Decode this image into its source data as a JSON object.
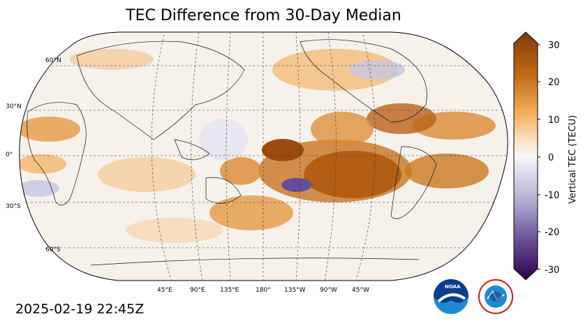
{
  "title": "TEC Difference from 30-Day Median",
  "timestamp": "2025-02-19 22:45Z",
  "map": {
    "projection": "robinson",
    "center_longitude": "180",
    "lat_labels": [
      "60°N",
      "30°N",
      "0°",
      "30°S",
      "60°S"
    ],
    "lon_labels": [
      "45°E",
      "90°E",
      "135°E",
      "180°",
      "135°W",
      "90°W",
      "45°W"
    ],
    "gridlines": "dashed"
  },
  "colorbar": {
    "label": "Vertical TEC (TECU)",
    "ticks": [
      "30",
      "20",
      "10",
      "0",
      "-10",
      "-20",
      "-30"
    ],
    "min": -30,
    "max": 30,
    "colors": {
      "negative": "#3d0f5e",
      "neutral": "#f7f7f7",
      "positive": "#7f3b08"
    }
  },
  "logos": [
    "noaa-logo",
    "national-weather-service-logo"
  ]
}
